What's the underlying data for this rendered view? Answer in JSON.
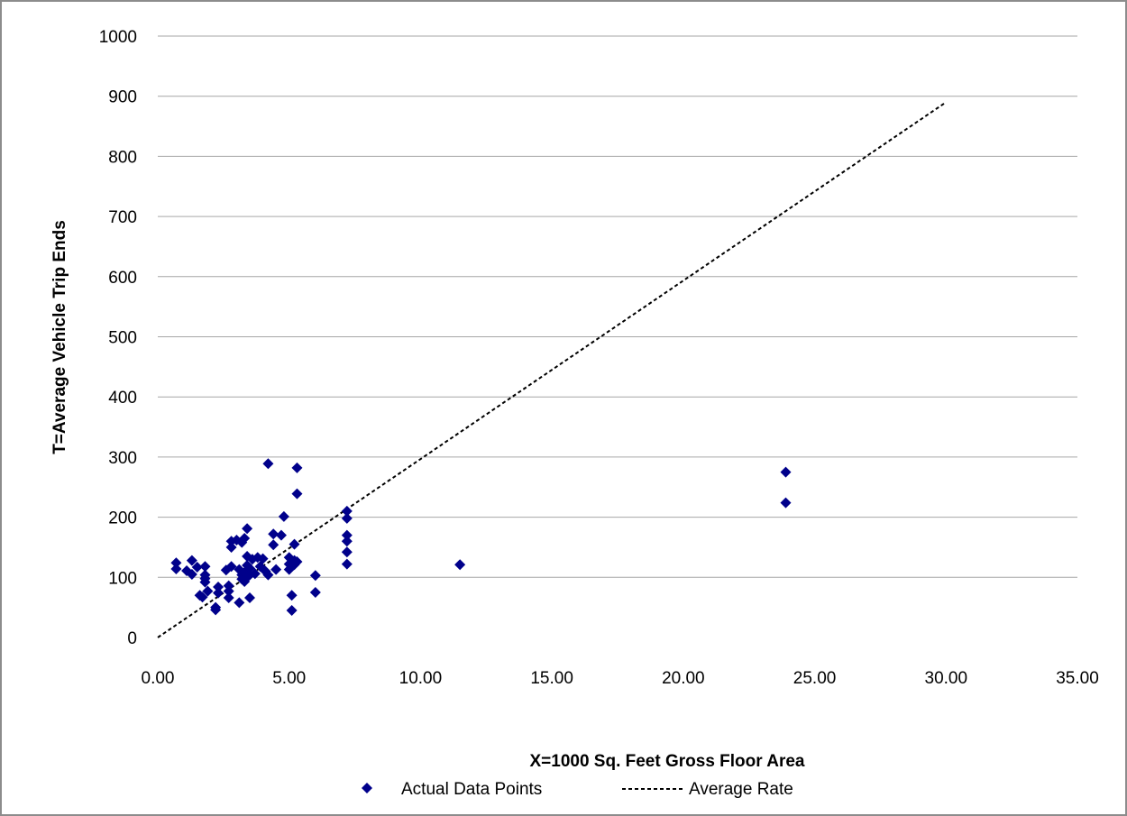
{
  "chart_data": {
    "type": "scatter",
    "title": "",
    "xlabel": "X=1000 Sq. Feet Gross Floor Area",
    "ylabel": "T=Average Vehicle Trip Ends",
    "xlim": [
      0,
      35
    ],
    "ylim": [
      0,
      1000
    ],
    "x_ticks": [
      0,
      5,
      10,
      15,
      20,
      25,
      30,
      35
    ],
    "x_tick_labels": [
      "0.00",
      "5.00",
      "10.00",
      "15.00",
      "20.00",
      "25.00",
      "30.00",
      "35.00"
    ],
    "y_ticks": [
      0,
      100,
      200,
      300,
      400,
      500,
      600,
      700,
      800,
      900,
      1000
    ],
    "y_tick_labels": [
      "0",
      "100",
      "200",
      "300",
      "400",
      "500",
      "600",
      "700",
      "800",
      "900",
      "1000"
    ],
    "grid": "horizontal",
    "legend_position": "bottom",
    "colors": {
      "points": "#00008b",
      "line": "#000000",
      "grid": "#a6a6a6"
    },
    "series": [
      {
        "name": "Actual Data Points",
        "kind": "scatter",
        "marker": "diamond",
        "points": [
          [
            0.7,
            124
          ],
          [
            0.7,
            114
          ],
          [
            1.1,
            111
          ],
          [
            1.3,
            128
          ],
          [
            1.3,
            105
          ],
          [
            1.5,
            117
          ],
          [
            1.8,
            118
          ],
          [
            1.8,
            104
          ],
          [
            1.8,
            98
          ],
          [
            1.8,
            92
          ],
          [
            1.6,
            70
          ],
          [
            1.7,
            67
          ],
          [
            1.9,
            77
          ],
          [
            2.2,
            50
          ],
          [
            2.2,
            46
          ],
          [
            2.3,
            74
          ],
          [
            2.3,
            84
          ],
          [
            2.6,
            112
          ],
          [
            2.7,
            86
          ],
          [
            2.7,
            77
          ],
          [
            2.7,
            66
          ],
          [
            2.8,
            118
          ],
          [
            2.8,
            160
          ],
          [
            2.8,
            150
          ],
          [
            3.0,
            162
          ],
          [
            3.2,
            158
          ],
          [
            3.3,
            165
          ],
          [
            3.1,
            113
          ],
          [
            3.1,
            58
          ],
          [
            3.2,
            104
          ],
          [
            3.2,
            97
          ],
          [
            3.3,
            108
          ],
          [
            3.3,
            93
          ],
          [
            3.4,
            181
          ],
          [
            3.4,
            135
          ],
          [
            3.4,
            120
          ],
          [
            3.4,
            100
          ],
          [
            3.5,
            115
          ],
          [
            3.5,
            104
          ],
          [
            3.5,
            66
          ],
          [
            3.6,
            130
          ],
          [
            3.7,
            106
          ],
          [
            3.8,
            133
          ],
          [
            3.9,
            118
          ],
          [
            4.0,
            131
          ],
          [
            4.1,
            110
          ],
          [
            4.2,
            104
          ],
          [
            4.2,
            289
          ],
          [
            4.4,
            154
          ],
          [
            4.4,
            172
          ],
          [
            4.5,
            113
          ],
          [
            4.7,
            170
          ],
          [
            4.8,
            201
          ],
          [
            5.0,
            133
          ],
          [
            5.0,
            122
          ],
          [
            5.0,
            113
          ],
          [
            5.1,
            70
          ],
          [
            5.1,
            45
          ],
          [
            5.2,
            155
          ],
          [
            5.2,
            128
          ],
          [
            5.2,
            121
          ],
          [
            5.3,
            282
          ],
          [
            5.3,
            239
          ],
          [
            5.3,
            126
          ],
          [
            6.0,
            103
          ],
          [
            6.0,
            75
          ],
          [
            7.2,
            210
          ],
          [
            7.2,
            198
          ],
          [
            7.2,
            170
          ],
          [
            7.2,
            160
          ],
          [
            7.2,
            142
          ],
          [
            7.2,
            122
          ],
          [
            11.5,
            121
          ],
          [
            23.9,
            275
          ],
          [
            23.9,
            224
          ]
        ]
      },
      {
        "name": "Average Rate",
        "kind": "line",
        "style": "dashed",
        "points": [
          [
            0,
            0
          ],
          [
            30,
            890
          ]
        ]
      }
    ]
  }
}
